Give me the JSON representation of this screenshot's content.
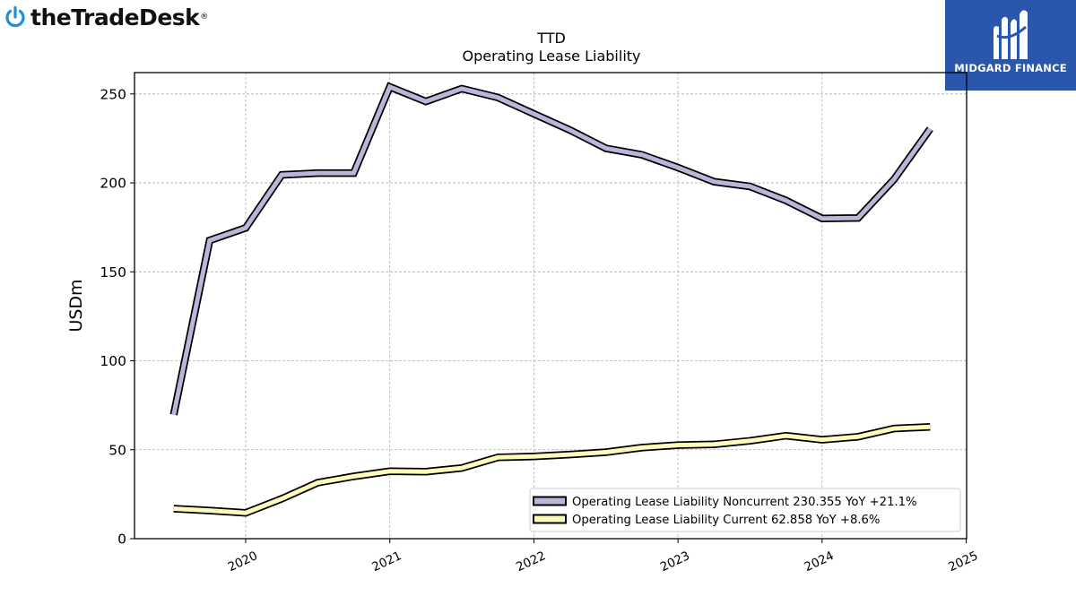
{
  "branding": {
    "left_logo_text": "theTradeDesk",
    "right_logo_text": "MIDGARD FINANCE",
    "right_logo_bg": "#2a57ac",
    "left_logo_icon": "ttd-power-icon",
    "right_logo_icon": "midgard-m-icon"
  },
  "chart_data": {
    "type": "line",
    "title": "TTD",
    "subtitle": "Operating Lease Liability",
    "xlabel": "",
    "ylabel": "USDm",
    "xlim": [
      2019.33,
      2025.0
    ],
    "ylim": [
      0,
      262
    ],
    "x_ticks": [
      "2020",
      "2021",
      "2022",
      "2023",
      "2024",
      "2025"
    ],
    "y_ticks": [
      0,
      50,
      100,
      150,
      200,
      250
    ],
    "grid": true,
    "legend_position": "lower-right",
    "x": [
      2019.5,
      2019.75,
      2020.0,
      2020.25,
      2020.5,
      2020.75,
      2021.0,
      2021.25,
      2021.5,
      2021.75,
      2022.0,
      2022.25,
      2022.5,
      2022.75,
      2023.0,
      2023.25,
      2023.5,
      2023.75,
      2024.0,
      2024.25,
      2024.5,
      2024.75
    ],
    "series": [
      {
        "name": "Operating Lease Liability Noncurrent",
        "legend_label": "Operating Lease Liability Noncurrent  230.355 YoY +21.1%",
        "color": "#b9b6d9",
        "values": [
          69.7,
          167.7,
          174.7,
          204.5,
          205.5,
          205.5,
          254.0,
          245.8,
          253.0,
          248.0,
          238.8,
          229.7,
          219.4,
          215.8,
          208.6,
          200.7,
          198.0,
          190.1,
          180.0,
          180.3,
          202.0,
          230.355
        ]
      },
      {
        "name": "Operating Lease Liability Current",
        "legend_label": "Operating Lease Liability Current  62.858 YoY +8.6%",
        "color": "#fdfbb9",
        "values": [
          16.9,
          15.8,
          14.5,
          22.4,
          31.5,
          35.0,
          37.9,
          37.7,
          39.7,
          45.7,
          46.2,
          47.3,
          48.6,
          51.2,
          52.6,
          53.0,
          55.0,
          57.9,
          55.6,
          57.3,
          61.9,
          62.858
        ]
      }
    ]
  }
}
